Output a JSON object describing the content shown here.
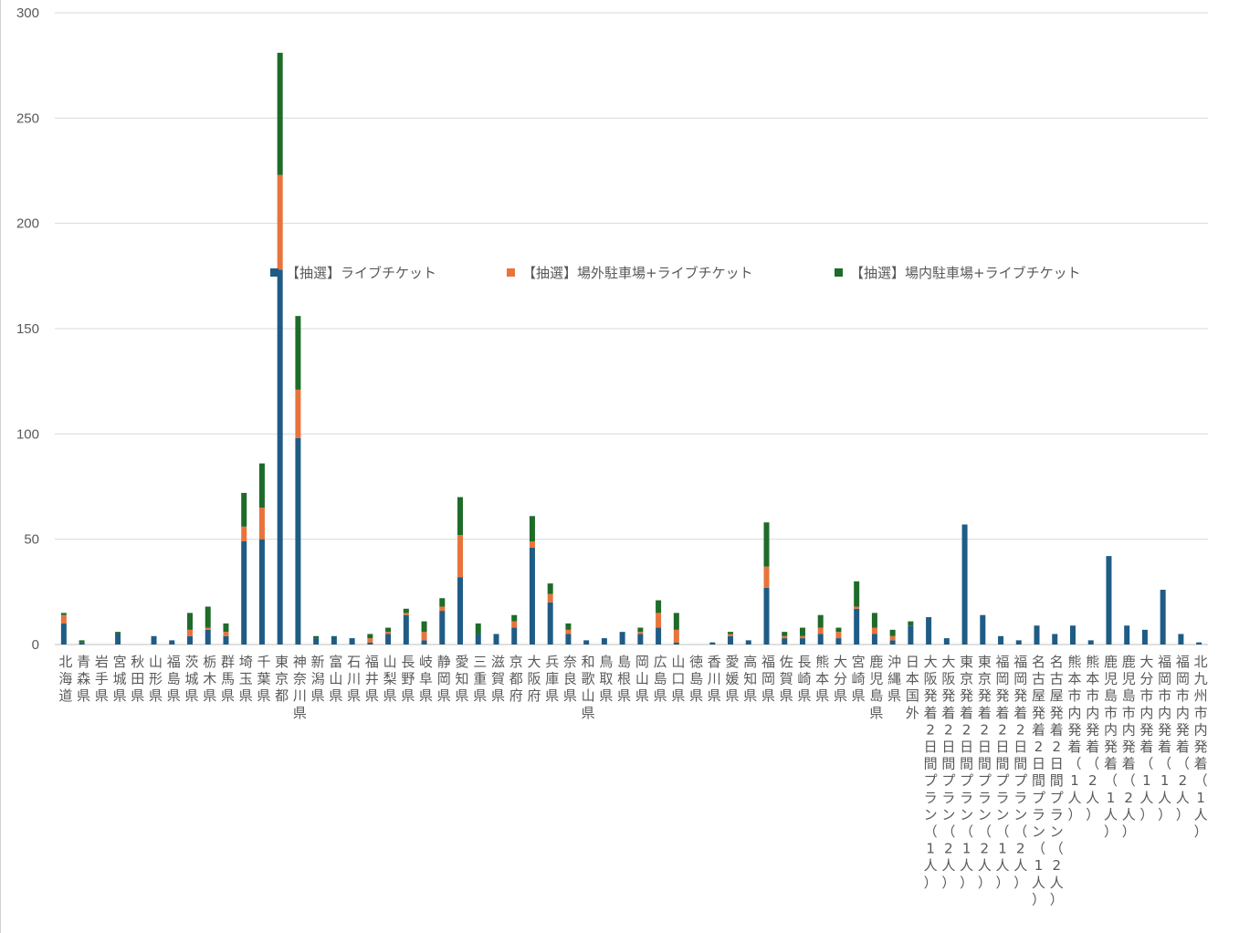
{
  "chart_data": {
    "type": "bar",
    "stacked": true,
    "ylim": [
      0,
      300
    ],
    "yticks": [
      0,
      50,
      100,
      150,
      200,
      250,
      300
    ],
    "grid": true,
    "legend_position": "bottom",
    "categories": [
      "北海道",
      "青森県",
      "岩手県",
      "宮城県",
      "秋田県",
      "山形県",
      "福島県",
      "茨城県",
      "栃木県",
      "群馬県",
      "埼玉県",
      "千葉県",
      "東京都",
      "神奈川県",
      "新潟県",
      "富山県",
      "石川県",
      "福井県",
      "山梨県",
      "長野県",
      "岐阜県",
      "静岡県",
      "愛知県",
      "三重県",
      "滋賀県",
      "京都府",
      "大阪府",
      "兵庫県",
      "奈良県",
      "和歌山県",
      "鳥取県",
      "島根県",
      "岡山県",
      "広島県",
      "山口県",
      "徳島県",
      "香川県",
      "愛媛県",
      "高知県",
      "福岡県",
      "佐賀県",
      "長崎県",
      "熊本県",
      "大分県",
      "宮崎県",
      "鹿児島県",
      "沖縄県",
      "日本国外",
      "大阪発着2日間プラン（1人）",
      "大阪発着2日間プラン（2人）",
      "東京発着2日間プラン（1人）",
      "東京発着2日間プラン（2人）",
      "福岡発着2日間プラン（1人）",
      "福岡発着2日間プラン（2人）",
      "名古屋発着2日間プラン（1人）",
      "名古屋発着2日間プラン（2人）",
      "熊本市内発着（1人）",
      "熊本市内発着（2人）",
      "鹿児島市内発着（1人）",
      "鹿児島市内発着（2人）",
      "大分市内発着（1人）",
      "福岡市内発着（1人）",
      "福岡市内発着（2人）",
      "北九州市内発着（1人）"
    ],
    "series": [
      {
        "name": "【抽選】ライブチケット",
        "color": "#1f5c85",
        "values": [
          10,
          1,
          0,
          5,
          0,
          4,
          2,
          4,
          7,
          4,
          49,
          50,
          178,
          98,
          3,
          4,
          3,
          1,
          5,
          14,
          2,
          16,
          32,
          5,
          5,
          8,
          46,
          20,
          5,
          2,
          3,
          6,
          5,
          8,
          1,
          0,
          1,
          4,
          2,
          27,
          3,
          3,
          5,
          3,
          17,
          5,
          2,
          9,
          13,
          3,
          57,
          14,
          4,
          2,
          9,
          5,
          9,
          2,
          42,
          9,
          7,
          26,
          5,
          1
        ]
      },
      {
        "name": "【抽選】場外駐車場+ライブチケット",
        "color": "#e8743b",
        "values": [
          4,
          0,
          0,
          0,
          0,
          0,
          0,
          3,
          1,
          2,
          7,
          15,
          45,
          23,
          0,
          0,
          0,
          2,
          1,
          1,
          4,
          2,
          20,
          0,
          0,
          3,
          3,
          4,
          2,
          0,
          0,
          0,
          1,
          7,
          6,
          0,
          0,
          1,
          0,
          10,
          1,
          1,
          3,
          3,
          1,
          3,
          2,
          0,
          0,
          0,
          0,
          0,
          0,
          0,
          0,
          0,
          0,
          0,
          0,
          0,
          0,
          0,
          0,
          0
        ]
      },
      {
        "name": "【抽選】場内駐車場+ライブチケット",
        "color": "#1e6b2a",
        "values": [
          1,
          1,
          0,
          1,
          0,
          0,
          0,
          8,
          10,
          4,
          16,
          21,
          58,
          35,
          1,
          0,
          0,
          2,
          2,
          2,
          5,
          4,
          18,
          5,
          0,
          3,
          12,
          5,
          3,
          0,
          0,
          0,
          2,
          6,
          8,
          0,
          0,
          1,
          0,
          21,
          2,
          4,
          6,
          2,
          12,
          7,
          3,
          2,
          0,
          0,
          0,
          0,
          0,
          0,
          0,
          0,
          0,
          0,
          0,
          0,
          0,
          0,
          0,
          0
        ]
      }
    ]
  }
}
